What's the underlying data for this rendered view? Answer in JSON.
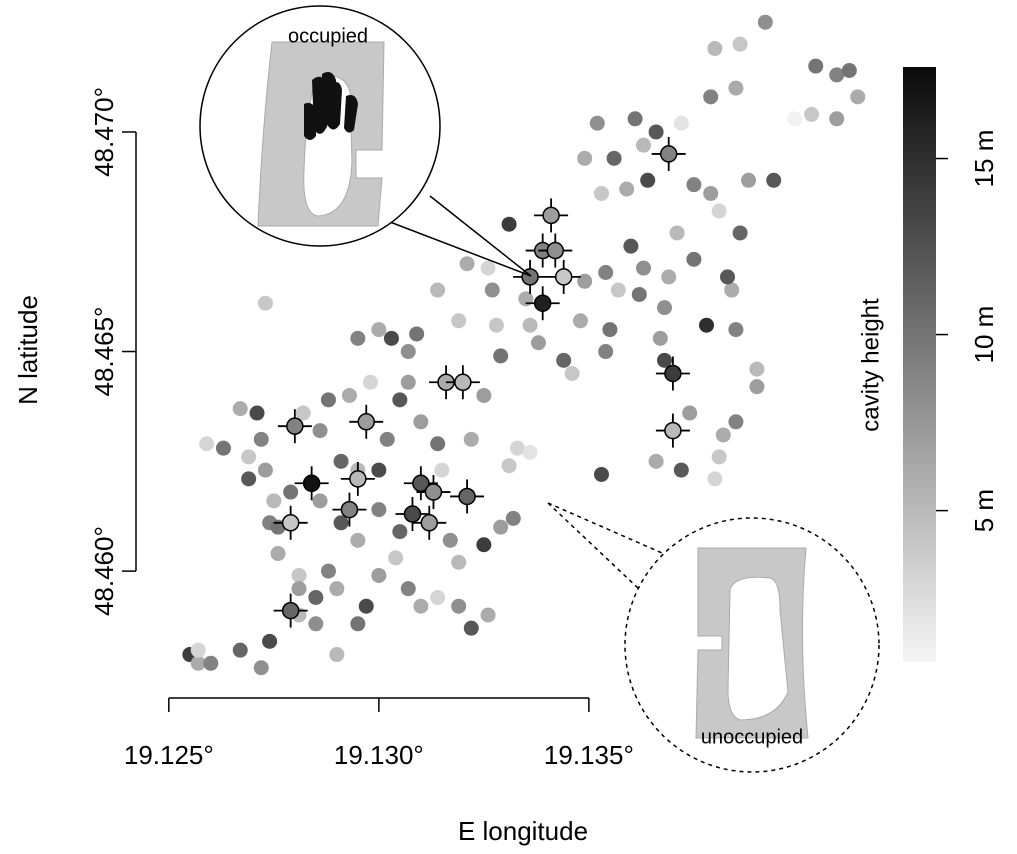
{
  "chart_data": {
    "type": "scatter",
    "xlabel": "E longitude",
    "ylabel": "N latitude",
    "colorbar_label": "cavity height",
    "xlim": [
      19.12479,
      19.14193
    ],
    "ylim": [
      48.45711,
      48.47255
    ],
    "xticks": [
      {
        "value": 19.125,
        "label": "19.125°"
      },
      {
        "value": 19.13,
        "label": "19.130°"
      },
      {
        "value": 19.135,
        "label": "19.135°"
      }
    ],
    "yticks": [
      {
        "value": 48.46,
        "label": "48.460°"
      },
      {
        "value": 48.465,
        "label": "48.465°"
      },
      {
        "value": 48.47,
        "label": "48.470°"
      }
    ],
    "clim": [
      0.7,
      17.6
    ],
    "cticks": [
      {
        "value": 5,
        "label": "5 m"
      },
      {
        "value": 10,
        "label": "10 m"
      },
      {
        "value": 15,
        "label": "15 m"
      }
    ],
    "colormap": "gray_reversed",
    "annotations": [
      "occupied",
      "unoccupied"
    ],
    "series": [
      {
        "marker": "dot",
        "x": [
          19.1392,
          19.138,
          19.1386,
          19.1404,
          19.1409,
          19.1412,
          19.1414,
          19.1409,
          19.1403,
          19.1399,
          19.1394,
          19.1388,
          19.1385,
          19.1379,
          19.1372,
          19.1366,
          19.1361,
          19.1352,
          19.1349,
          19.1356,
          19.1363,
          19.1364,
          19.1359,
          19.1353,
          19.1375,
          19.1379,
          19.1381,
          19.1386,
          19.1375,
          19.1371,
          19.136,
          19.1363,
          19.1369,
          19.1354,
          19.1349,
          19.1357,
          19.1362,
          19.1368,
          19.1378,
          19.1385,
          19.1384,
          19.1383,
          19.1348,
          19.1355,
          19.1367,
          19.1368,
          19.1354,
          19.1344,
          19.1346,
          19.1338,
          19.1336,
          19.1331,
          19.1327,
          19.1321,
          19.1326,
          19.1335,
          19.1328,
          19.1329,
          19.139,
          19.139,
          19.1385,
          19.1382,
          19.1381,
          19.1374,
          19.1366,
          19.1372,
          19.138,
          19.1353,
          19.1273,
          19.1255,
          19.1257,
          19.126,
          19.1257,
          19.1267,
          19.1272,
          19.1274,
          19.1259,
          19.1263,
          19.1267,
          19.1271,
          19.1269,
          19.1272,
          19.1269,
          19.1273,
          19.1274,
          19.1275,
          19.1276,
          19.1281,
          19.1281,
          19.1285,
          19.1288,
          19.129,
          19.1285,
          19.129,
          19.1295,
          19.1297,
          19.13,
          19.1304,
          19.1307,
          19.131,
          19.1314,
          19.1319,
          19.1322,
          19.1326,
          19.1325,
          19.1332,
          19.1329,
          19.1333,
          19.1336,
          19.1331,
          19.1322,
          19.1314,
          19.131,
          19.1305,
          19.1302,
          19.1295,
          19.1291,
          19.1286,
          19.1282,
          19.1288,
          19.1293,
          19.1298,
          19.1307,
          19.1295,
          19.13,
          19.1303,
          19.1309,
          19.1307,
          19.1314,
          19.1319,
          19.1325,
          19.1286,
          19.1279,
          19.1291,
          19.1295,
          19.13,
          19.1305,
          19.1312,
          19.1317,
          19.1319,
          19.13,
          19.1315,
          19.1281,
          19.1276
        ],
        "y": [
          48.4725,
          48.4719,
          48.472,
          48.4715,
          48.4713,
          48.4714,
          48.4708,
          48.4703,
          48.4704,
          48.4703,
          48.4689,
          48.4689,
          48.471,
          48.4708,
          48.4702,
          48.47,
          48.4703,
          48.4702,
          48.4694,
          48.4694,
          48.4697,
          48.4689,
          48.4687,
          48.4686,
          48.4688,
          48.4686,
          48.4682,
          48.4677,
          48.4671,
          48.4677,
          48.4674,
          48.4669,
          48.4667,
          48.4668,
          48.4666,
          48.4664,
          48.4663,
          48.466,
          48.4656,
          48.4655,
          48.4664,
          48.4667,
          48.4657,
          48.4655,
          48.4653,
          48.4648,
          48.465,
          48.4648,
          48.4645,
          48.4652,
          48.4656,
          48.4679,
          48.4664,
          48.467,
          48.4669,
          48.4662,
          48.4656,
          48.4649,
          48.4646,
          48.4642,
          48.4634,
          48.4631,
          48.4626,
          48.4636,
          48.4625,
          48.4623,
          48.4621,
          48.4622,
          48.4661,
          48.4581,
          48.4579,
          48.4579,
          48.4582,
          48.4582,
          48.4578,
          48.4584,
          48.4629,
          48.4628,
          48.4637,
          48.4636,
          48.4626,
          48.463,
          48.4621,
          48.4623,
          48.4611,
          48.4616,
          48.461,
          48.4599,
          48.4596,
          48.4594,
          48.46,
          48.4596,
          48.4588,
          48.4581,
          48.4588,
          48.4592,
          48.4599,
          48.4603,
          48.4596,
          48.4592,
          48.4594,
          48.4592,
          48.4587,
          48.459,
          48.4606,
          48.4612,
          48.461,
          48.4628,
          48.4627,
          48.4624,
          48.463,
          48.4629,
          48.4634,
          48.4639,
          48.463,
          48.4623,
          48.4625,
          48.4632,
          48.4636,
          48.4639,
          48.464,
          48.4643,
          48.4643,
          48.4653,
          48.4655,
          48.4653,
          48.4654,
          48.465,
          48.4664,
          48.4657,
          48.464,
          48.4616,
          48.4618,
          48.4611,
          48.4607,
          48.4614,
          48.4609,
          48.4611,
          48.4607,
          48.4602,
          48.4623,
          48.4623,
          48.459,
          48.4604
        ],
        "values": [
          8,
          5,
          4,
          10,
          9,
          10,
          6,
          7,
          4,
          1,
          12,
          7,
          6,
          9,
          2,
          12,
          10,
          8,
          6,
          11,
          5,
          13,
          6,
          4,
          9,
          7,
          3,
          11,
          10,
          5,
          12,
          8,
          6,
          9,
          7,
          4,
          10,
          8,
          15,
          9,
          6,
          12,
          6,
          10,
          7,
          13,
          9,
          11,
          4,
          7,
          5,
          14,
          8,
          6,
          3,
          6,
          4,
          10,
          5,
          7,
          9,
          6,
          4,
          7,
          6,
          12,
          3,
          13,
          4,
          14,
          6,
          9,
          3,
          11,
          8,
          13,
          3,
          10,
          6,
          13,
          4,
          9,
          12,
          7,
          9,
          5,
          10,
          4,
          7,
          11,
          9,
          6,
          8,
          5,
          10,
          13,
          7,
          4,
          9,
          6,
          3,
          8,
          12,
          6,
          14,
          9,
          7,
          3,
          2,
          4,
          6,
          10,
          7,
          12,
          9,
          5,
          11,
          8,
          4,
          10,
          6,
          3,
          7,
          9,
          6,
          13,
          10,
          8,
          5,
          4,
          7,
          7,
          10,
          12,
          6,
          9,
          11,
          4,
          8,
          5,
          13,
          3,
          5,
          6
        ]
      },
      {
        "marker": "crosshair",
        "x": [
          19.1369,
          19.1341,
          19.1339,
          19.1342,
          19.1336,
          19.1344,
          19.1339,
          19.137,
          19.137,
          19.1316,
          19.132,
          19.1297,
          19.128,
          19.1295,
          19.1284,
          19.131,
          19.1313,
          19.1321,
          19.1293,
          19.1308,
          19.1312,
          19.1279,
          19.1279
        ],
        "y": [
          48.4695,
          48.4681,
          48.4673,
          48.4673,
          48.4667,
          48.4667,
          48.4661,
          48.4645,
          48.4632,
          48.4643,
          48.4643,
          48.4634,
          48.4633,
          48.4621,
          48.462,
          48.462,
          48.4618,
          48.4617,
          48.4614,
          48.4613,
          48.4611,
          48.4611,
          48.4591
        ],
        "values": [
          9,
          7,
          9,
          8,
          10,
          4,
          16,
          14,
          5,
          6,
          5,
          7,
          9,
          5,
          17,
          12,
          8,
          11,
          9,
          13,
          7,
          4,
          11
        ]
      }
    ]
  }
}
